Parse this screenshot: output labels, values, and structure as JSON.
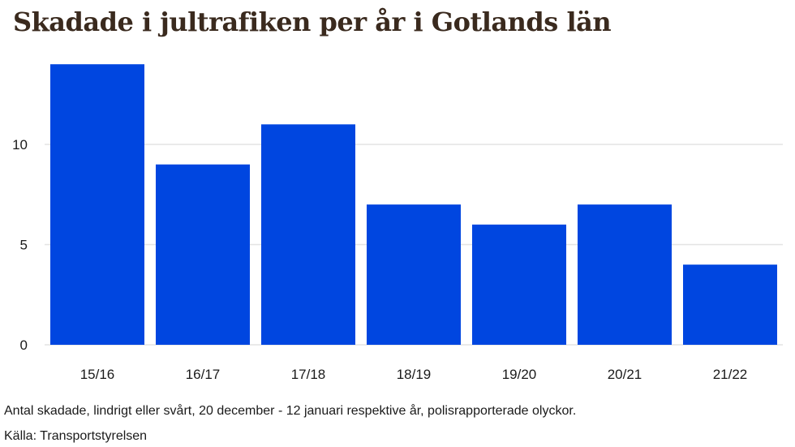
{
  "chart_data": {
    "type": "bar",
    "title": "Skadade i jultrafiken per år i Gotlands län",
    "categories": [
      "15/16",
      "16/17",
      "17/18",
      "18/19",
      "19/20",
      "20/21",
      "21/22"
    ],
    "values": [
      14,
      9,
      11,
      7,
      6,
      7,
      4
    ],
    "xlabel": "",
    "ylabel": "",
    "ylim": [
      0,
      14
    ],
    "yticks": [
      0,
      5,
      10
    ],
    "grid": true,
    "bar_color": "#0046e0",
    "grid_color": "#e3e3e3"
  },
  "footnotes": {
    "description": "Antal skadade, lindrigt eller svårt, 20 december - 12 januari respektive år, polisrapporterade olyckor.",
    "source": "Källa: Transportstyrelsen"
  }
}
